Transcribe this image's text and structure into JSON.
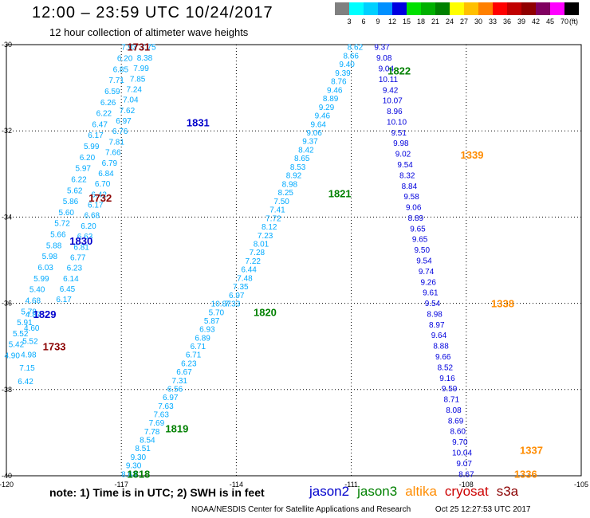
{
  "header": {
    "title": "12:00 – 23:59 UTC 10/24/2017",
    "subtitle": "12 hour collection of altimeter wave heights"
  },
  "legend": {
    "unit": "(ft)",
    "labels": [
      "3",
      "6",
      "9",
      "12",
      "15",
      "18",
      "21",
      "24",
      "27",
      "30",
      "33",
      "36",
      "39",
      "42",
      "45",
      "70"
    ],
    "colors": [
      "#808080",
      "#00ffff",
      "#00d0ff",
      "#0090ff",
      "#0000e0",
      "#00e000",
      "#00b000",
      "#008000",
      "#ffff00",
      "#ffc000",
      "#ff8000",
      "#ff0000",
      "#c00000",
      "#900000",
      "#800060",
      "#ff00ff",
      "#000000"
    ]
  },
  "map_data": {
    "lat_ticks": [
      {
        "value": -30,
        "label": "-30"
      },
      {
        "value": -32,
        "label": "-32"
      },
      {
        "value": -34,
        "label": "-34"
      },
      {
        "value": -36,
        "label": "-36"
      },
      {
        "value": -38,
        "label": "-38"
      },
      {
        "value": -40,
        "label": "-40"
      }
    ],
    "lon_ticks": [
      {
        "value": -120,
        "label": "-120"
      },
      {
        "value": -117,
        "label": "-117"
      },
      {
        "value": -114,
        "label": "-114"
      },
      {
        "value": -111,
        "label": "-111"
      },
      {
        "value": -108,
        "label": "-108"
      },
      {
        "value": -105,
        "label": "-105"
      }
    ],
    "tracks": [
      {
        "color": "#00aaff",
        "start": [
          -116.8,
          -30.05
        ],
        "end": [
          -119.85,
          -37.2
        ],
        "values": [
          "7.93",
          "6.20",
          "6.85",
          "7.71",
          "6.59",
          "6.26",
          "6.22",
          "6.47",
          "6.17",
          "5.99",
          "6.20",
          "5.97",
          "6.22",
          "5.62",
          "5.86",
          "5.60",
          "5.72",
          "5.66",
          "5.88",
          "5.98",
          "6.03",
          "5.99",
          "5.40",
          "4.68",
          "5.78",
          "5.91",
          "5.52",
          "5.42",
          "4.90"
        ]
      },
      {
        "color": "#00aaff",
        "start": [
          -116.3,
          -30.05
        ],
        "end": [
          -118.5,
          -35.9
        ],
        "values": [
          "7.75",
          "8.38",
          "7.99",
          "7.85",
          "7.24",
          "7.04",
          "7.62",
          "6.97",
          "6.76",
          "7.81",
          "7.66",
          "6.79",
          "6.84",
          "6.70",
          "6.42",
          "6.17",
          "6.68",
          "6.20",
          "6.63",
          "6.81",
          "6.77",
          "6.23",
          "6.14",
          "6.45",
          "6.17"
        ]
      },
      {
        "color": "#00aaff",
        "start": [
          -119.3,
          -36.25
        ],
        "end": [
          -119.5,
          -37.8
        ],
        "values": [
          "4.87",
          "4.60",
          "5.52",
          "4.98",
          "7.15",
          "6.42"
        ]
      },
      {
        "color": "#00aaff",
        "start": [
          -114.4,
          -36.0
        ],
        "end": [
          -116.8,
          -39.95
        ],
        "values": [
          "10.87",
          "5.70",
          "5.87",
          "6.93",
          "6.89",
          "6.71",
          "6.71",
          "6.23",
          "6.67",
          "7.31",
          "6.56",
          "6.97",
          "7.63",
          "7.63",
          "7.69",
          "7.78",
          "8.54",
          "8.51",
          "9.30",
          "9.30",
          "8.63"
        ]
      },
      {
        "color": "#00aaff",
        "start": [
          -110.9,
          -30.05
        ],
        "end": [
          -114.1,
          -36.0
        ],
        "values": [
          "8.62",
          "8.66",
          "9.40",
          "9.39",
          "8.76",
          "9.46",
          "8.89",
          "9.29",
          "9.46",
          "9.64",
          "9.06",
          "9.37",
          "8.42",
          "8.65",
          "8.53",
          "8.92",
          "8.98",
          "8.25",
          "7.50",
          "7.41",
          "7.72",
          "8.12",
          "7.23",
          "8.01",
          "7.28",
          "7.22",
          "6.44",
          "7.48",
          "7.35",
          "6.97",
          "7.33"
        ]
      },
      {
        "color": "#0000dd",
        "start": [
          -110.2,
          -30.05
        ],
        "end": [
          -108.0,
          -39.95
        ],
        "values": [
          "9.37",
          "9.08",
          "9.04",
          "10.11",
          "9.42",
          "10.07",
          "8.96",
          "10.10",
          "9.51",
          "9.98",
          "9.02",
          "9.54",
          "8.32",
          "8.84",
          "9.58",
          "9.06",
          "8.89",
          "9.65",
          "9.65",
          "9.50",
          "9.54",
          "9.74",
          "9.26",
          "9.61",
          "9.54",
          "8.98",
          "8.97",
          "9.64",
          "8.88",
          "9.66",
          "8.52",
          "9.16",
          "9.59",
          "8.71",
          "8.08",
          "8.69",
          "8.60",
          "9.70",
          "10.04",
          "9.07",
          "8.67"
        ]
      }
    ],
    "time_labels": [
      {
        "text": "1731",
        "color": "#8b0000",
        "lon": -116.55,
        "lat": -30.05
      },
      {
        "text": "1831",
        "color": "#0000cc",
        "lon": -115.0,
        "lat": -31.8
      },
      {
        "text": "1732",
        "color": "#8b0000",
        "lon": -117.55,
        "lat": -33.55
      },
      {
        "text": "1830",
        "color": "#0000cc",
        "lon": -118.05,
        "lat": -34.55
      },
      {
        "text": "1829",
        "color": "#0000cc",
        "lon": -119.0,
        "lat": -36.25
      },
      {
        "text": "1733",
        "color": "#8b0000",
        "lon": -118.75,
        "lat": -37.0
      },
      {
        "text": "1822",
        "color": "#008000",
        "lon": -109.75,
        "lat": -30.6
      },
      {
        "text": "1821",
        "color": "#008000",
        "lon": -111.3,
        "lat": -33.45
      },
      {
        "text": "1820",
        "color": "#008000",
        "lon": -113.25,
        "lat": -36.2
      },
      {
        "text": "1819",
        "color": "#008000",
        "lon": -115.55,
        "lat": -38.9
      },
      {
        "text": "1818",
        "color": "#008000",
        "lon": -116.55,
        "lat": -39.95
      },
      {
        "text": "1339",
        "color": "#ff8c00",
        "lon": -107.85,
        "lat": -32.55
      },
      {
        "text": "1338",
        "color": "#ff8c00",
        "lon": -107.05,
        "lat": -36.0
      },
      {
        "text": "1337",
        "color": "#ff8c00",
        "lon": -106.3,
        "lat": -39.4
      },
      {
        "text": "1336",
        "color": "#ff8c00",
        "lon": -106.45,
        "lat": -39.95
      }
    ]
  },
  "note": "note:  1) Time is in UTC;  2) SWH is in feet",
  "satellites": [
    {
      "name": "jason2",
      "color": "#0000cc"
    },
    {
      "name": "jason3",
      "color": "#008000"
    },
    {
      "name": "altika",
      "color": "#ff8c00"
    },
    {
      "name": "cryosat",
      "color": "#cc0000"
    },
    {
      "name": "s3a",
      "color": "#8b0000"
    }
  ],
  "footer": {
    "source": "NOAA/NESDIS Center for Satellite Applications and Research",
    "timestamp": "Oct 25 12:27:53 UTC 2017"
  }
}
